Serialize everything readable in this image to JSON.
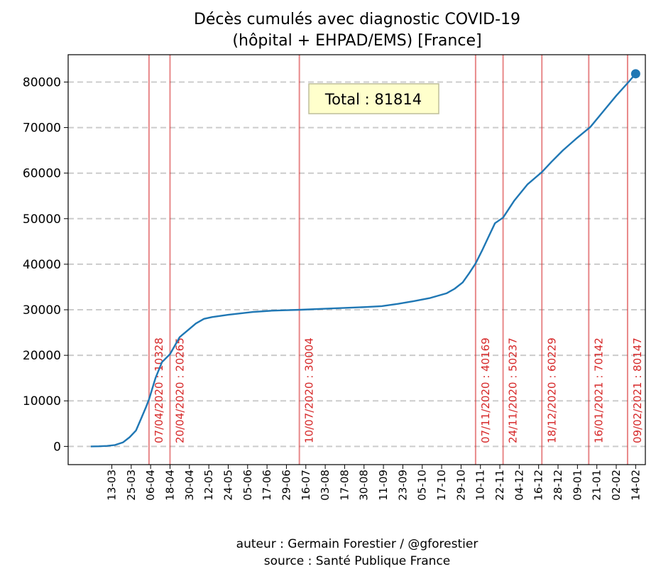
{
  "chart_data": {
    "type": "line",
    "title_lines": [
      "Décès cumulés avec diagnostic COVID-19",
      "(hôpital + EHPAD/EMS) [France]"
    ],
    "y_ticks": [
      0,
      10000,
      20000,
      30000,
      40000,
      50000,
      60000,
      70000,
      80000
    ],
    "ylim": [
      -4000,
      86000
    ],
    "x_day_range": [
      -14,
      343
    ],
    "x_ticks": [
      {
        "day": 13,
        "label": "13-03"
      },
      {
        "day": 25,
        "label": "25-03"
      },
      {
        "day": 37,
        "label": "06-04"
      },
      {
        "day": 49,
        "label": "18-04"
      },
      {
        "day": 61,
        "label": "30-04"
      },
      {
        "day": 73,
        "label": "12-05"
      },
      {
        "day": 85,
        "label": "24-05"
      },
      {
        "day": 97,
        "label": "05-06"
      },
      {
        "day": 109,
        "label": "17-06"
      },
      {
        "day": 121,
        "label": "29-06"
      },
      {
        "day": 133,
        "label": "16-07"
      },
      {
        "day": 145,
        "label": "03-08"
      },
      {
        "day": 157,
        "label": "17-08"
      },
      {
        "day": 169,
        "label": "30-08"
      },
      {
        "day": 181,
        "label": "11-09"
      },
      {
        "day": 193,
        "label": "23-09"
      },
      {
        "day": 205,
        "label": "05-10"
      },
      {
        "day": 217,
        "label": "17-10"
      },
      {
        "day": 229,
        "label": "29-10"
      },
      {
        "day": 241,
        "label": "10-11"
      },
      {
        "day": 253,
        "label": "22-11"
      },
      {
        "day": 265,
        "label": "04-12"
      },
      {
        "day": 277,
        "label": "16-12"
      },
      {
        "day": 289,
        "label": "28-12"
      },
      {
        "day": 301,
        "label": "09-01"
      },
      {
        "day": 313,
        "label": "21-01"
      },
      {
        "day": 325,
        "label": "02-02"
      },
      {
        "day": 337,
        "label": "14-02"
      }
    ],
    "series": [
      {
        "name": "Décès cumulés",
        "color": "#1f77b4",
        "points": [
          [
            0,
            0
          ],
          [
            5,
            20
          ],
          [
            10,
            100
          ],
          [
            15,
            300
          ],
          [
            20,
            900
          ],
          [
            24,
            2000
          ],
          [
            28,
            3500
          ],
          [
            31,
            6000
          ],
          [
            34,
            8500
          ],
          [
            36,
            10328
          ],
          [
            40,
            15000
          ],
          [
            44,
            18500
          ],
          [
            49,
            20265
          ],
          [
            55,
            24000
          ],
          [
            60,
            25500
          ],
          [
            65,
            27000
          ],
          [
            70,
            28000
          ],
          [
            75,
            28400
          ],
          [
            85,
            28900
          ],
          [
            100,
            29500
          ],
          [
            112,
            29800
          ],
          [
            120,
            29900
          ],
          [
            130,
            30004
          ],
          [
            150,
            30300
          ],
          [
            170,
            30600
          ],
          [
            180,
            30800
          ],
          [
            190,
            31300
          ],
          [
            200,
            31900
          ],
          [
            210,
            32600
          ],
          [
            220,
            33600
          ],
          [
            225,
            34600
          ],
          [
            230,
            36000
          ],
          [
            234,
            38000
          ],
          [
            238,
            40169
          ],
          [
            242,
            43000
          ],
          [
            246,
            46000
          ],
          [
            250,
            49000
          ],
          [
            255,
            50237
          ],
          [
            262,
            54000
          ],
          [
            270,
            57500
          ],
          [
            279,
            60229
          ],
          [
            285,
            62500
          ],
          [
            292,
            65000
          ],
          [
            300,
            67500
          ],
          [
            309,
            70142
          ],
          [
            318,
            74000
          ],
          [
            325,
            77000
          ],
          [
            333,
            80147
          ],
          [
            337,
            81814
          ]
        ]
      }
    ],
    "last_point": {
      "day": 337,
      "value": 81814
    },
    "total_label": "Total : 81814",
    "vertical_markers": [
      {
        "day": 36,
        "value": 10328,
        "label": "07/04/2020 : 10328"
      },
      {
        "day": 49,
        "value": 20265,
        "label": "20/04/2020 : 20265"
      },
      {
        "day": 129,
        "value": 30004,
        "label": "10/07/2020 : 30004"
      },
      {
        "day": 238,
        "value": 40169,
        "label": "07/11/2020 : 40169"
      },
      {
        "day": 255,
        "value": 50237,
        "label": "24/11/2020 : 50237"
      },
      {
        "day": 279,
        "value": 60229,
        "label": "18/12/2020 : 60229"
      },
      {
        "day": 308,
        "value": 70142,
        "label": "16/01/2021 : 70142"
      },
      {
        "day": 332,
        "value": 80147,
        "label": "09/02/2021 : 80147"
      }
    ],
    "colors": {
      "line": "#1f77b4",
      "marker": "#d62728",
      "grid": "#cccccc",
      "total_box": "#ffffcc"
    }
  },
  "footer": {
    "author": "auteur : Germain Forestier / @gforestier",
    "source": "source : Santé Publique France"
  }
}
